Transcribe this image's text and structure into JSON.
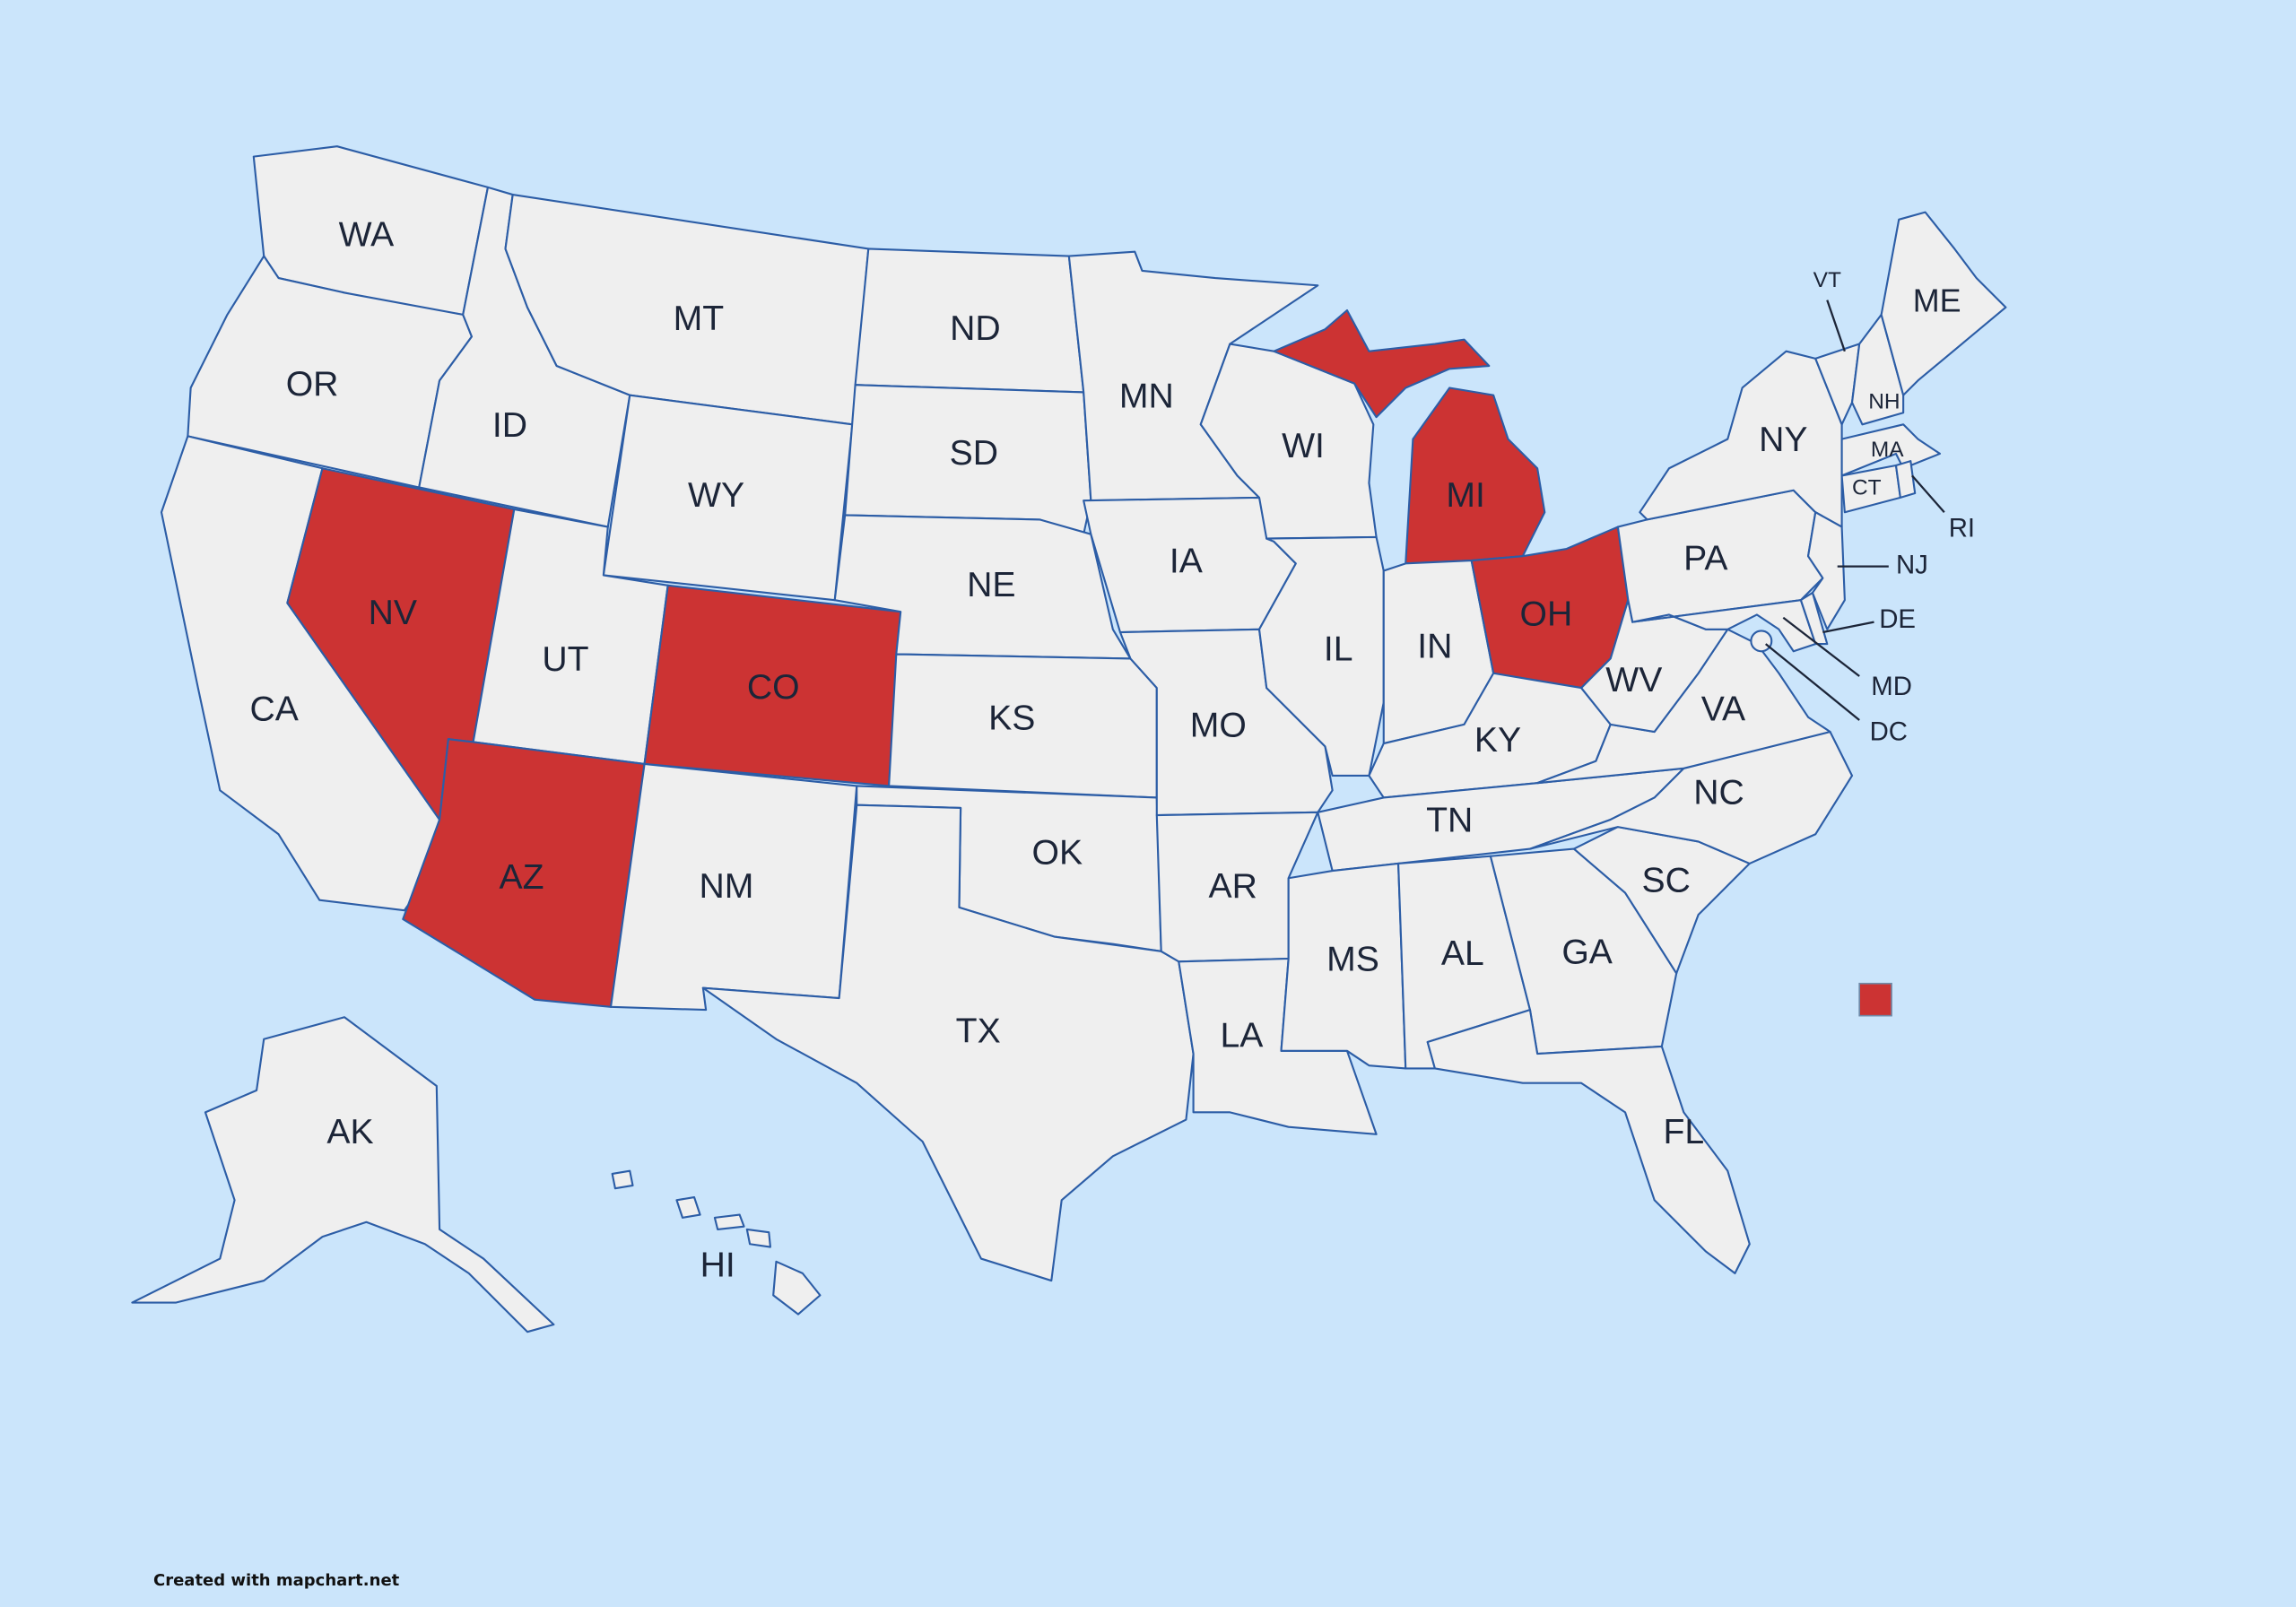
{
  "map": {
    "colors": {
      "background": "#cbe5fb",
      "default_fill": "#efefef",
      "highlight_fill": "#cc3333",
      "border": "#2c5da6",
      "label": "#1c2538"
    },
    "highlighted_states": [
      "NV",
      "AZ",
      "CO",
      "MI",
      "OH"
    ],
    "states": [
      "WA",
      "OR",
      "CA",
      "NV",
      "ID",
      "MT",
      "WY",
      "UT",
      "CO",
      "AZ",
      "NM",
      "ND",
      "SD",
      "NE",
      "KS",
      "OK",
      "TX",
      "MN",
      "IA",
      "MO",
      "AR",
      "LA",
      "WI",
      "IL",
      "MI",
      "IN",
      "OH",
      "KY",
      "TN",
      "MS",
      "AL",
      "GA",
      "FL",
      "SC",
      "NC",
      "VA",
      "WV",
      "PA",
      "NY",
      "MD",
      "DE",
      "NJ",
      "VT",
      "NH",
      "ME",
      "MA",
      "CT",
      "RI",
      "DC",
      "AK",
      "HI"
    ]
  },
  "legend": {
    "items": [
      {
        "color": "#cc3333",
        "label": ""
      }
    ]
  },
  "credit": "Created with mapchart.net"
}
